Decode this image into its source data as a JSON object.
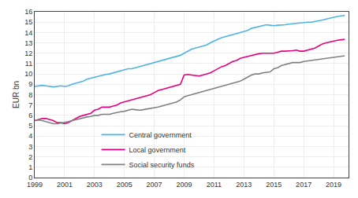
{
  "chart_data": {
    "type": "line",
    "ylabel": "EUR bn",
    "x": [
      1999,
      1999.25,
      1999.5,
      1999.75,
      2000,
      2000.25,
      2000.5,
      2000.75,
      2001,
      2001.25,
      2001.5,
      2001.75,
      2002,
      2002.25,
      2002.5,
      2002.75,
      2003,
      2003.25,
      2003.5,
      2003.75,
      2004,
      2004.25,
      2004.5,
      2004.75,
      2005,
      2005.25,
      2005.5,
      2005.75,
      2006,
      2006.25,
      2006.5,
      2006.75,
      2007,
      2007.25,
      2007.5,
      2007.75,
      2008,
      2008.25,
      2008.5,
      2008.75,
      2009,
      2009.25,
      2009.5,
      2009.75,
      2010,
      2010.25,
      2010.5,
      2010.75,
      2011,
      2011.25,
      2011.5,
      2011.75,
      2012,
      2012.25,
      2012.5,
      2012.75,
      2013,
      2013.25,
      2013.5,
      2013.75,
      2014,
      2014.25,
      2014.5,
      2014.75,
      2015,
      2015.25,
      2015.5,
      2015.75,
      2016,
      2016.25,
      2016.5,
      2016.75,
      2017,
      2017.25,
      2017.5,
      2017.75,
      2018,
      2018.25,
      2018.5,
      2018.75,
      2019,
      2019.25,
      2019.5,
      2019.75
    ],
    "series": [
      {
        "name": "Central government",
        "color": "#4db3e6",
        "values": [
          8.8,
          8.85,
          8.9,
          8.85,
          8.8,
          8.75,
          8.8,
          8.85,
          8.8,
          8.85,
          9.0,
          9.1,
          9.2,
          9.3,
          9.5,
          9.6,
          9.7,
          9.8,
          9.9,
          9.95,
          10.0,
          10.1,
          10.2,
          10.3,
          10.4,
          10.5,
          10.5,
          10.6,
          10.7,
          10.8,
          10.9,
          11.0,
          11.1,
          11.2,
          11.3,
          11.4,
          11.5,
          11.6,
          11.7,
          11.8,
          12.0,
          12.2,
          12.4,
          12.5,
          12.6,
          12.7,
          12.8,
          13.0,
          13.2,
          13.35,
          13.5,
          13.6,
          13.7,
          13.8,
          13.9,
          14.0,
          14.1,
          14.2,
          14.4,
          14.5,
          14.6,
          14.7,
          14.75,
          14.7,
          14.65,
          14.7,
          14.7,
          14.75,
          14.8,
          14.85,
          14.9,
          14.9,
          14.95,
          15.0,
          15.0,
          15.05,
          15.1,
          15.2,
          15.3,
          15.4,
          15.5,
          15.55,
          15.6,
          15.65
        ]
      },
      {
        "name": "Local government",
        "color": "#e6007e",
        "values": [
          5.5,
          5.6,
          5.7,
          5.7,
          5.6,
          5.5,
          5.3,
          5.3,
          5.2,
          5.3,
          5.5,
          5.7,
          5.9,
          6.0,
          6.1,
          6.2,
          6.5,
          6.6,
          6.8,
          6.8,
          6.8,
          6.9,
          7.0,
          7.2,
          7.3,
          7.4,
          7.5,
          7.6,
          7.7,
          7.8,
          7.9,
          8.0,
          8.2,
          8.4,
          8.5,
          8.6,
          8.7,
          8.8,
          8.9,
          9.0,
          9.9,
          9.95,
          9.9,
          9.85,
          9.8,
          9.9,
          10.0,
          10.1,
          10.3,
          10.5,
          10.7,
          10.8,
          11.0,
          11.2,
          11.3,
          11.5,
          11.6,
          11.7,
          11.8,
          11.9,
          11.95,
          12.0,
          12.0,
          12.0,
          12.0,
          12.1,
          12.2,
          12.2,
          12.2,
          12.25,
          12.3,
          12.2,
          12.2,
          12.3,
          12.4,
          12.5,
          12.7,
          12.9,
          13.0,
          13.1,
          13.2,
          13.25,
          13.3,
          13.35
        ]
      },
      {
        "name": "Social security funds",
        "color": "#808080",
        "values": [
          5.5,
          5.55,
          5.5,
          5.4,
          5.3,
          5.2,
          5.2,
          5.25,
          5.3,
          5.4,
          5.5,
          5.6,
          5.7,
          5.8,
          5.85,
          5.9,
          6.0,
          6.0,
          6.1,
          6.1,
          6.1,
          6.2,
          6.3,
          6.35,
          6.4,
          6.5,
          6.6,
          6.55,
          6.5,
          6.55,
          6.6,
          6.65,
          6.7,
          6.8,
          6.9,
          7.0,
          7.1,
          7.2,
          7.3,
          7.5,
          7.8,
          7.9,
          8.0,
          8.1,
          8.2,
          8.3,
          8.4,
          8.5,
          8.6,
          8.7,
          8.8,
          8.9,
          9.0,
          9.1,
          9.2,
          9.3,
          9.5,
          9.7,
          9.9,
          10.0,
          10.0,
          10.1,
          10.15,
          10.2,
          10.5,
          10.6,
          10.8,
          10.9,
          11.0,
          11.1,
          11.1,
          11.1,
          11.2,
          11.25,
          11.3,
          11.35,
          11.4,
          11.45,
          11.5,
          11.55,
          11.6,
          11.65,
          11.7,
          11.75
        ]
      }
    ],
    "xlim": [
      1999,
      2020.0
    ],
    "xticks": [
      1999,
      2001,
      2003,
      2005,
      2007,
      2009,
      2011,
      2013,
      2015,
      2017,
      2019
    ],
    "ylim": [
      0,
      16
    ],
    "yticks": [
      0,
      1,
      2,
      3,
      4,
      5,
      6,
      7,
      8,
      9,
      10,
      11,
      12,
      13,
      14,
      15,
      16
    ],
    "grid": true,
    "legend": "lower left"
  }
}
